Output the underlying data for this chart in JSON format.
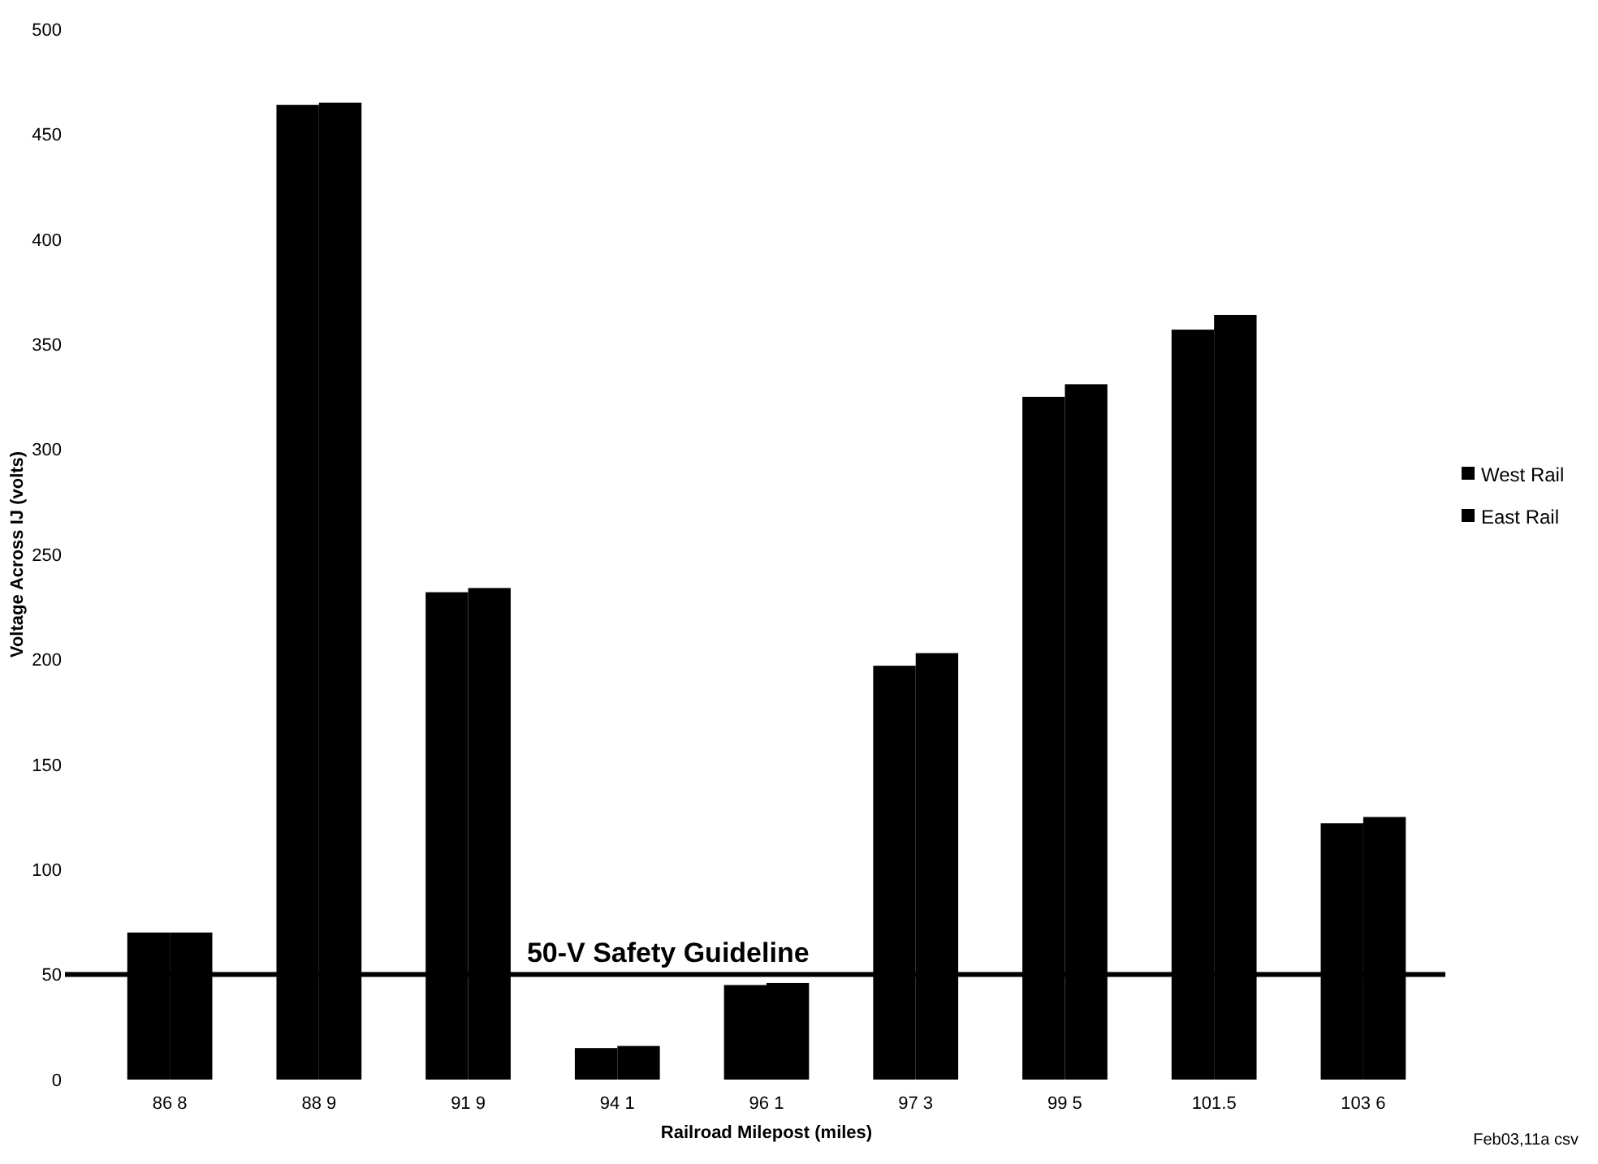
{
  "chart_data": {
    "type": "bar",
    "xlabel": "Railroad Milepost (miles)",
    "ylabel": "Voltage Across IJ (volts)",
    "categories": [
      "86 8",
      "88 9",
      "91 9",
      "94 1",
      "96 1",
      "97 3",
      "99 5",
      "101.5",
      "103 6"
    ],
    "series": [
      {
        "name": "West Rail",
        "color": "#000000",
        "values": [
          70,
          464,
          232,
          15,
          45,
          197,
          325,
          357,
          122
        ]
      },
      {
        "name": "East Rail",
        "color": "#000000",
        "values": [
          70,
          465,
          234,
          16,
          46,
          203,
          331,
          364,
          125
        ]
      }
    ],
    "ylim": [
      0,
      500
    ],
    "yticks": [
      0,
      50,
      100,
      150,
      200,
      250,
      300,
      350,
      400,
      450,
      500
    ],
    "grid": false,
    "legend": "right",
    "ref_lines": [
      {
        "axis": "y",
        "value": 50,
        "label": "50-V Safety Guideline",
        "color": "#000000"
      }
    ],
    "annotations": [
      "Feb03,11a csv"
    ]
  }
}
